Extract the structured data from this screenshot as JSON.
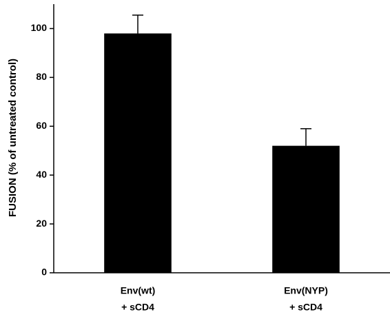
{
  "chart_data": {
    "type": "bar",
    "ylabel": "FUSION (% of untreated control)",
    "categories": [
      [
        "Env(wt)",
        "+ sCD4"
      ],
      [
        "Env(NYP)",
        "+ sCD4"
      ]
    ],
    "values": [
      98,
      52
    ],
    "errors": [
      7.5,
      7
    ],
    "color": "#000000",
    "ylim": [
      0,
      110
    ],
    "yticks": [
      0,
      20,
      40,
      60,
      80,
      100
    ],
    "grid": false
  }
}
